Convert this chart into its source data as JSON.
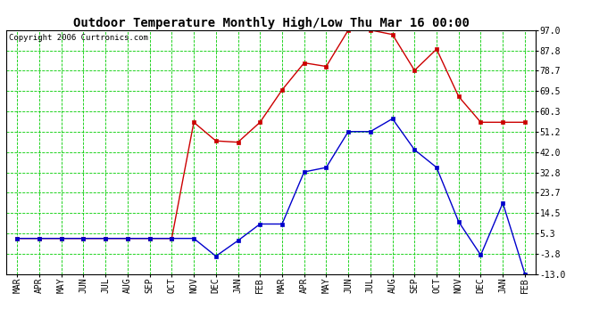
{
  "title": "Outdoor Temperature Monthly High/Low Thu Mar 16 00:00",
  "copyright": "Copyright 2006 Curtronics.com",
  "x_labels": [
    "MAR",
    "APR",
    "MAY",
    "JUN",
    "JUL",
    "AUG",
    "SEP",
    "OCT",
    "NOV",
    "DEC",
    "JAN",
    "FEB",
    "MAR",
    "APR",
    "MAY",
    "JUN",
    "JUL",
    "AUG",
    "SEP",
    "OCT",
    "NOV",
    "DEC",
    "JAN",
    "FEB"
  ],
  "high_temps": [
    3.0,
    3.0,
    3.0,
    3.0,
    3.0,
    3.0,
    3.0,
    3.0,
    55.4,
    47.0,
    46.4,
    55.4,
    70.0,
    82.2,
    80.6,
    97.0,
    97.0,
    95.0,
    78.8,
    88.4,
    67.0,
    55.4,
    55.4,
    55.4
  ],
  "low_temps": [
    3.0,
    3.0,
    3.0,
    3.0,
    3.0,
    3.0,
    3.0,
    3.0,
    3.0,
    -5.0,
    2.0,
    9.5,
    9.5,
    33.0,
    35.0,
    51.2,
    51.2,
    57.0,
    43.0,
    35.0,
    10.5,
    -4.5,
    19.0,
    -13.0
  ],
  "y_ticks": [
    97.0,
    87.8,
    78.7,
    69.5,
    60.3,
    51.2,
    42.0,
    32.8,
    23.7,
    14.5,
    5.3,
    -3.8,
    -13.0
  ],
  "ylim_min": -13.0,
  "ylim_max": 97.0,
  "high_color": "#cc0000",
  "low_color": "#0000cc",
  "bg_color": "#ffffff",
  "grid_color": "#00cc00",
  "title_fontsize": 10,
  "copyright_fontsize": 6.5,
  "tick_fontsize": 7
}
